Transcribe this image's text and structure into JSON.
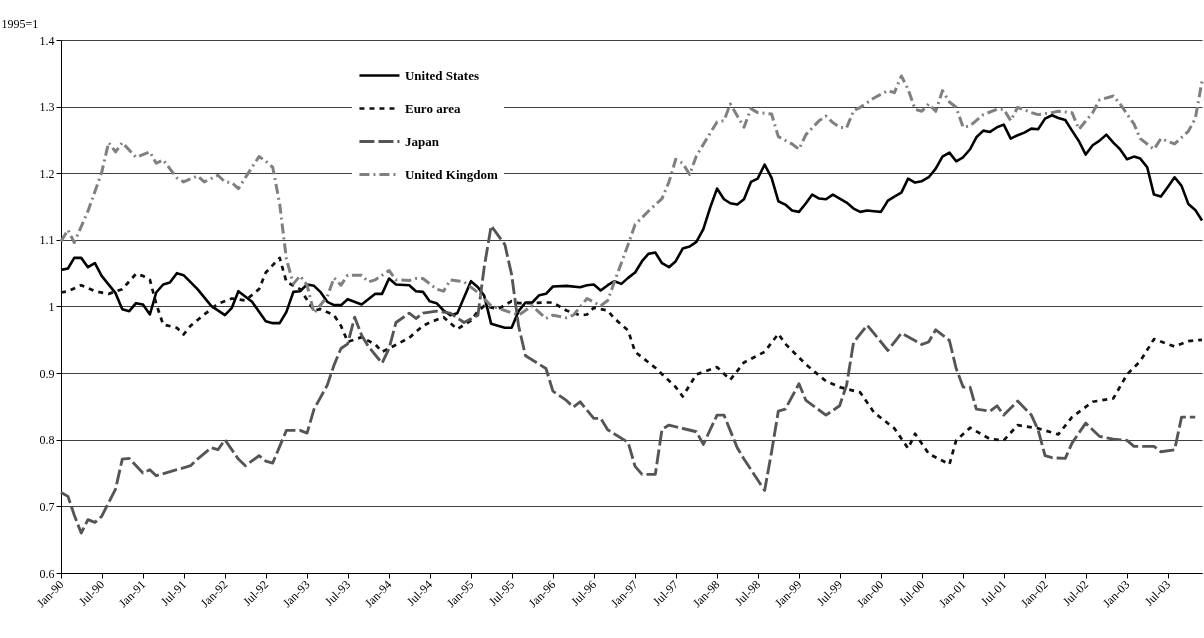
{
  "chart_data": {
    "type": "line",
    "ylabel": "1995=1",
    "ylim": [
      0.6,
      1.4
    ],
    "yticks": [
      0.6,
      0.7,
      0.8,
      0.9,
      1,
      1.1,
      1.2,
      1.3,
      1.4
    ],
    "xlim": [
      "1990-01",
      "2003-12"
    ],
    "xticks": [
      {
        "value": "1990-01",
        "label": "Jan-90"
      },
      {
        "value": "1990-07",
        "label": "Jul-90"
      },
      {
        "value": "1991-01",
        "label": "Jan-91"
      },
      {
        "value": "1991-07",
        "label": "Jul-91"
      },
      {
        "value": "1992-01",
        "label": "Jan-92"
      },
      {
        "value": "1992-07",
        "label": "Jul-92"
      },
      {
        "value": "1993-01",
        "label": "Jan-93"
      },
      {
        "value": "1993-07",
        "label": "Jul-93"
      },
      {
        "value": "1994-01",
        "label": "Jan-94"
      },
      {
        "value": "1994-07",
        "label": "Jul-94"
      },
      {
        "value": "1995-01",
        "label": "Jan-95"
      },
      {
        "value": "1995-07",
        "label": "Jul-95"
      },
      {
        "value": "1996-01",
        "label": "Jan-96"
      },
      {
        "value": "1996-07",
        "label": "Jul-96"
      },
      {
        "value": "1997-01",
        "label": "Jan-97"
      },
      {
        "value": "1997-07",
        "label": "Jul-97"
      },
      {
        "value": "1998-01",
        "label": "Jan-98"
      },
      {
        "value": "1998-07",
        "label": "Jul-98"
      },
      {
        "value": "1999-01",
        "label": "Jan-99"
      },
      {
        "value": "1999-07",
        "label": "Jul-99"
      },
      {
        "value": "2000-01",
        "label": "Jan-00"
      },
      {
        "value": "2000-07",
        "label": "Jul-00"
      },
      {
        "value": "2001-01",
        "label": "Jan-01"
      },
      {
        "value": "2001-07",
        "label": "Jul-01"
      },
      {
        "value": "2002-01",
        "label": "Jan-02"
      },
      {
        "value": "2002-07",
        "label": "Jul-02"
      },
      {
        "value": "2003-01",
        "label": "Jan-03"
      },
      {
        "value": "2003-07",
        "label": "Jul-03"
      }
    ],
    "grid": "y",
    "legend": "top left",
    "marker": "none",
    "series": [
      {
        "name": "United States",
        "color": "#000000",
        "line_style": "solid",
        "x": [
          "1990-01",
          "1990-02",
          "1990-03",
          "1990-04",
          "1990-05",
          "1990-06",
          "1990-07",
          "1990-09",
          "1990-10",
          "1990-11",
          "1990-12",
          "1991-01",
          "1991-02",
          "1991-03",
          "1991-04",
          "1991-05",
          "1991-06",
          "1991-07",
          "1991-09",
          "1991-11",
          "1992-01",
          "1992-02",
          "1992-03",
          "1992-05",
          "1992-07",
          "1992-08",
          "1992-09",
          "1992-10",
          "1992-11",
          "1992-12",
          "1993-01",
          "1993-02",
          "1993-03",
          "1993-04",
          "1993-05",
          "1993-06",
          "1993-07",
          "1993-09",
          "1993-11",
          "1993-12",
          "1994-01",
          "1994-02",
          "1994-04",
          "1994-05",
          "1994-06",
          "1994-07",
          "1994-08",
          "1994-09",
          "1994-10",
          "1994-11",
          "1995-01",
          "1995-02",
          "1995-03",
          "1995-04",
          "1995-05",
          "1995-06",
          "1995-07",
          "1995-08",
          "1995-09",
          "1995-10",
          "1995-11",
          "1995-12",
          "1996-01",
          "1996-03",
          "1996-05",
          "1996-06",
          "1996-07",
          "1996-08",
          "1996-09",
          "1996-10",
          "1996-11",
          "1996-12",
          "1997-01",
          "1997-02",
          "1997-03",
          "1997-04",
          "1997-05",
          "1997-06",
          "1997-07",
          "1997-08",
          "1997-09",
          "1997-10",
          "1997-11",
          "1997-12",
          "1998-01",
          "1998-02",
          "1998-03",
          "1998-04",
          "1998-05",
          "1998-06",
          "1998-07",
          "1998-08",
          "1998-09",
          "1998-10",
          "1998-11",
          "1998-12",
          "1999-01",
          "1999-02",
          "1999-03",
          "1999-04",
          "1999-05",
          "1999-06",
          "1999-08",
          "1999-09",
          "1999-10",
          "1999-11",
          "1999-12",
          "2000-01",
          "2000-02",
          "2000-03",
          "2000-04",
          "2000-05",
          "2000-06",
          "2000-07",
          "2000-08",
          "2000-09",
          "2000-10",
          "2000-11",
          "2000-12",
          "2001-01",
          "2001-02",
          "2001-03",
          "2001-04",
          "2001-05",
          "2001-06",
          "2001-07",
          "2001-08",
          "2001-09",
          "2001-10",
          "2001-11",
          "2001-12",
          "2002-01",
          "2002-02",
          "2002-03",
          "2002-04",
          "2002-05",
          "2002-06",
          "2002-07",
          "2002-08",
          "2002-09",
          "2002-10",
          "2002-11",
          "2002-12",
          "2003-01",
          "2003-02",
          "2003-03",
          "2003-04",
          "2003-05",
          "2003-06",
          "2003-07",
          "2003-08",
          "2003-09",
          "2003-10",
          "2003-11",
          "2003-12"
        ],
        "values": [
          1.055,
          1.057,
          1.073,
          1.073,
          1.059,
          1.065,
          1.046,
          1.02,
          0.996,
          0.993,
          1.005,
          1.003,
          0.988,
          1.021,
          1.033,
          1.036,
          1.05,
          1.047,
          1.026,
          1.001,
          0.987,
          0.998,
          1.023,
          1.007,
          0.978,
          0.975,
          0.975,
          0.992,
          1.022,
          1.023,
          1.033,
          1.031,
          1.022,
          1.007,
          1.002,
          1.002,
          1.011,
          1.003,
          1.019,
          1.019,
          1.042,
          1.033,
          1.032,
          1.023,
          1.022,
          1.008,
          1.005,
          0.994,
          0.987,
          0.99,
          1.038,
          1.029,
          1.016,
          0.974,
          0.971,
          0.968,
          0.968,
          0.993,
          1.006,
          1.006,
          1.017,
          1.019,
          1.03,
          1.031,
          1.029,
          1.032,
          1.033,
          1.024,
          1.032,
          1.038,
          1.034,
          1.043,
          1.051,
          1.068,
          1.079,
          1.081,
          1.065,
          1.059,
          1.068,
          1.087,
          1.09,
          1.097,
          1.116,
          1.148,
          1.177,
          1.161,
          1.155,
          1.153,
          1.161,
          1.187,
          1.192,
          1.213,
          1.193,
          1.158,
          1.153,
          1.144,
          1.142,
          1.155,
          1.168,
          1.162,
          1.161,
          1.168,
          1.156,
          1.147,
          1.142,
          1.144,
          1.143,
          1.142,
          1.159,
          1.165,
          1.171,
          1.192,
          1.186,
          1.188,
          1.194,
          1.207,
          1.225,
          1.231,
          1.218,
          1.224,
          1.236,
          1.254,
          1.264,
          1.262,
          1.269,
          1.273,
          1.252,
          1.257,
          1.261,
          1.267,
          1.266,
          1.282,
          1.287,
          1.283,
          1.28,
          1.264,
          1.248,
          1.228,
          1.242,
          1.249,
          1.258,
          1.246,
          1.236,
          1.221,
          1.225,
          1.222,
          1.209,
          1.168,
          1.165,
          1.179,
          1.194,
          1.181,
          1.154,
          1.145,
          1.129
        ]
      },
      {
        "name": "Euro area",
        "color": "#111111",
        "line_style": "dotted",
        "x": [
          "1990-01",
          "1990-02",
          "1990-04",
          "1990-06",
          "1990-08",
          "1990-10",
          "1990-12",
          "1991-01",
          "1991-02",
          "1991-03",
          "1991-04",
          "1991-06",
          "1991-07",
          "1991-08",
          "1991-10",
          "1991-12",
          "1992-02",
          "1992-04",
          "1992-06",
          "1992-07",
          "1992-09",
          "1992-10",
          "1992-12",
          "1993-02",
          "1993-03",
          "1993-05",
          "1993-06",
          "1993-07",
          "1993-09",
          "1993-11",
          "1993-12",
          "1994-01",
          "1994-04",
          "1994-06",
          "1994-07",
          "1994-09",
          "1994-11",
          "1995-01",
          "1995-02",
          "1995-03",
          "1995-05",
          "1995-07",
          "1995-08",
          "1995-10",
          "1995-12",
          "1996-01",
          "1996-03",
          "1996-05",
          "1996-06",
          "1996-07",
          "1996-09",
          "1996-10",
          "1996-12",
          "1997-01",
          "1997-04",
          "1997-07",
          "1997-08",
          "1997-10",
          "1998-01",
          "1998-03",
          "1998-05",
          "1998-08",
          "1998-10",
          "1998-11",
          "1999-02",
          "1999-05",
          "1999-07",
          "1999-10",
          "1999-12",
          "2000-03",
          "2000-05",
          "2000-06",
          "2000-08",
          "2000-11",
          "2000-12",
          "2001-02",
          "2001-05",
          "2001-07",
          "2001-09",
          "2001-12",
          "2002-03",
          "2002-05",
          "2002-08",
          "2002-11",
          "2003-01",
          "2003-03",
          "2003-05",
          "2003-08",
          "2003-10",
          "2003-12"
        ],
        "values": [
          1.021,
          1.023,
          1.032,
          1.023,
          1.019,
          1.026,
          1.049,
          1.046,
          1.04,
          1.004,
          0.973,
          0.968,
          0.958,
          0.971,
          0.988,
          1.004,
          1.012,
          1.009,
          1.026,
          1.051,
          1.073,
          1.037,
          1.026,
          0.994,
          0.996,
          0.987,
          0.971,
          0.947,
          0.954,
          0.943,
          0.932,
          0.937,
          0.953,
          0.971,
          0.976,
          0.984,
          0.966,
          0.979,
          0.993,
          1.001,
          0.996,
          1.008,
          1.005,
          1.005,
          1.006,
          1.006,
          0.994,
          0.987,
          0.988,
          0.998,
          0.994,
          0.982,
          0.964,
          0.932,
          0.908,
          0.879,
          0.865,
          0.898,
          0.909,
          0.89,
          0.916,
          0.932,
          0.959,
          0.944,
          0.913,
          0.888,
          0.879,
          0.871,
          0.841,
          0.817,
          0.787,
          0.809,
          0.779,
          0.763,
          0.799,
          0.818,
          0.801,
          0.799,
          0.822,
          0.817,
          0.808,
          0.834,
          0.857,
          0.862,
          0.898,
          0.918,
          0.951,
          0.94,
          0.948,
          0.95
        ]
      },
      {
        "name": "Japan",
        "color": "#555555",
        "line_style": "dashed",
        "x": [
          "1990-01",
          "1990-02",
          "1990-03",
          "1990-04",
          "1990-05",
          "1990-06",
          "1990-07",
          "1990-09",
          "1990-10",
          "1990-11",
          "1991-01",
          "1991-02",
          "1991-03",
          "1991-06",
          "1991-08",
          "1991-09",
          "1991-11",
          "1991-12",
          "1992-01",
          "1992-03",
          "1992-04",
          "1992-06",
          "1992-07",
          "1992-08",
          "1992-09",
          "1992-10",
          "1992-12",
          "1993-01",
          "1993-02",
          "1993-04",
          "1993-05",
          "1993-06",
          "1993-07",
          "1993-08",
          "1993-09",
          "1993-10",
          "1993-12",
          "1994-01",
          "1994-02",
          "1994-04",
          "1994-05",
          "1994-06",
          "1994-08",
          "1994-10",
          "1994-12",
          "1995-02",
          "1995-03",
          "1995-04",
          "1995-06",
          "1995-07",
          "1995-08",
          "1995-09",
          "1995-12",
          "1996-01",
          "1996-03",
          "1996-04",
          "1996-05",
          "1996-07",
          "1996-08",
          "1996-09",
          "1996-12",
          "1997-01",
          "1997-02",
          "1997-04",
          "1997-05",
          "1997-06",
          "1997-10",
          "1997-11",
          "1998-01",
          "1998-02",
          "1998-04",
          "1998-05",
          "1998-08",
          "1998-09",
          "1998-10",
          "1998-11",
          "1999-01",
          "1999-02",
          "1999-05",
          "1999-07",
          "1999-08",
          "1999-09",
          "1999-11",
          "2000-02",
          "2000-04",
          "2000-07",
          "2000-08",
          "2000-09",
          "2000-11",
          "2000-12",
          "2001-01",
          "2001-02",
          "2001-03",
          "2001-05",
          "2001-06",
          "2001-07",
          "2001-09",
          "2001-11",
          "2001-12",
          "2002-01",
          "2002-02",
          "2002-04",
          "2002-05",
          "2002-07",
          "2002-09",
          "2002-11",
          "2003-01",
          "2003-02",
          "2003-05",
          "2003-06",
          "2003-08",
          "2003-09",
          "2003-11"
        ],
        "values": [
          0.721,
          0.715,
          0.687,
          0.66,
          0.68,
          0.676,
          0.685,
          0.726,
          0.771,
          0.772,
          0.75,
          0.755,
          0.746,
          0.755,
          0.761,
          0.771,
          0.788,
          0.785,
          0.8,
          0.771,
          0.761,
          0.776,
          0.768,
          0.765,
          0.79,
          0.814,
          0.814,
          0.81,
          0.846,
          0.882,
          0.912,
          0.937,
          0.944,
          0.984,
          0.957,
          0.94,
          0.915,
          0.937,
          0.976,
          0.99,
          0.982,
          0.99,
          0.993,
          0.99,
          0.976,
          0.987,
          1.059,
          1.121,
          1.093,
          1.048,
          0.971,
          0.926,
          0.907,
          0.873,
          0.859,
          0.849,
          0.857,
          0.832,
          0.832,
          0.815,
          0.796,
          0.76,
          0.748,
          0.748,
          0.816,
          0.822,
          0.812,
          0.793,
          0.837,
          0.837,
          0.788,
          0.771,
          0.724,
          0.782,
          0.843,
          0.846,
          0.884,
          0.859,
          0.837,
          0.851,
          0.882,
          0.946,
          0.972,
          0.934,
          0.96,
          0.943,
          0.947,
          0.965,
          0.949,
          0.907,
          0.879,
          0.879,
          0.846,
          0.843,
          0.851,
          0.837,
          0.858,
          0.837,
          0.815,
          0.776,
          0.773,
          0.772,
          0.795,
          0.825,
          0.805,
          0.801,
          0.799,
          0.79,
          0.79,
          0.782,
          0.785,
          0.834,
          0.834
        ]
      },
      {
        "name": "United Kingdom",
        "color": "#808080",
        "line_style": "dashdot",
        "x": [
          "1990-01",
          "1990-02",
          "1990-03",
          "1990-05",
          "1990-07",
          "1990-08",
          "1990-09",
          "1990-10",
          "1990-12",
          "1991-02",
          "1991-03",
          "1991-04",
          "1991-06",
          "1991-07",
          "1991-09",
          "1991-10",
          "1991-12",
          "1992-01",
          "1992-02",
          "1992-03",
          "1992-05",
          "1992-06",
          "1992-07",
          "1992-08",
          "1992-09",
          "1992-10",
          "1992-11",
          "1992-12",
          "1993-01",
          "1993-02",
          "1993-04",
          "1993-05",
          "1993-06",
          "1993-07",
          "1993-09",
          "1993-10",
          "1993-11",
          "1994-01",
          "1994-02",
          "1994-04",
          "1994-05",
          "1994-06",
          "1994-08",
          "1994-09",
          "1994-10",
          "1994-12",
          "1995-02",
          "1995-04",
          "1995-06",
          "1995-08",
          "1995-10",
          "1995-12",
          "1996-01",
          "1996-03",
          "1996-04",
          "1996-06",
          "1996-08",
          "1996-09",
          "1996-10",
          "1996-12",
          "1997-01",
          "1997-03",
          "1997-05",
          "1997-06",
          "1997-07",
          "1997-08",
          "1997-09",
          "1997-10",
          "1997-12",
          "1998-01",
          "1998-02",
          "1998-03",
          "1998-05",
          "1998-06",
          "1998-07",
          "1998-09",
          "1998-10",
          "1998-12",
          "1999-01",
          "1999-02",
          "1999-04",
          "1999-05",
          "1999-06",
          "1999-07",
          "1999-08",
          "1999-09",
          "1999-10",
          "1999-12",
          "2000-02",
          "2000-03",
          "2000-04",
          "2000-05",
          "2000-06",
          "2000-07",
          "2000-08",
          "2000-09",
          "2000-10",
          "2000-11",
          "2000-12",
          "2001-01",
          "2001-02",
          "2001-04",
          "2001-06",
          "2001-07",
          "2001-08",
          "2001-09",
          "2001-11",
          "2001-12",
          "2002-02",
          "2002-03",
          "2002-05",
          "2002-06",
          "2002-08",
          "2002-09",
          "2002-11",
          "2002-12",
          "2003-02",
          "2003-03",
          "2003-05",
          "2003-06",
          "2003-08",
          "2003-10",
          "2003-11",
          "2003-12"
        ],
        "values": [
          1.098,
          1.115,
          1.096,
          1.143,
          1.201,
          1.246,
          1.232,
          1.246,
          1.224,
          1.232,
          1.215,
          1.22,
          1.193,
          1.187,
          1.196,
          1.187,
          1.197,
          1.187,
          1.186,
          1.177,
          1.209,
          1.225,
          1.218,
          1.209,
          1.154,
          1.071,
          1.034,
          1.046,
          1.032,
          0.99,
          1.015,
          1.043,
          1.032,
          1.047,
          1.047,
          1.037,
          1.04,
          1.054,
          1.04,
          1.039,
          1.042,
          1.042,
          1.026,
          1.023,
          1.04,
          1.037,
          1.021,
          1.001,
          0.994,
          0.987,
          1.001,
          0.982,
          0.987,
          0.983,
          0.987,
          1.012,
          1.001,
          1.009,
          1.037,
          1.093,
          1.123,
          1.143,
          1.162,
          1.187,
          1.221,
          1.215,
          1.198,
          1.226,
          1.26,
          1.277,
          1.279,
          1.304,
          1.269,
          1.297,
          1.291,
          1.289,
          1.255,
          1.244,
          1.236,
          1.258,
          1.279,
          1.286,
          1.276,
          1.269,
          1.268,
          1.294,
          1.299,
          1.313,
          1.324,
          1.321,
          1.346,
          1.326,
          1.296,
          1.293,
          1.304,
          1.293,
          1.324,
          1.307,
          1.299,
          1.269,
          1.271,
          1.288,
          1.296,
          1.296,
          1.279,
          1.299,
          1.291,
          1.288,
          1.291,
          1.293,
          1.291,
          1.266,
          1.291,
          1.31,
          1.316,
          1.304,
          1.274,
          1.252,
          1.236,
          1.252,
          1.244,
          1.263,
          1.282,
          1.338
        ]
      }
    ]
  }
}
